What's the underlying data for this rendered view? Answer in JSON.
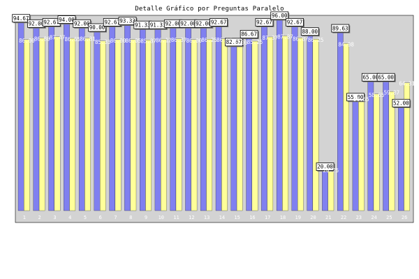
{
  "chart_data": {
    "type": "bar",
    "title": "Detalle Gráfico por Preguntas Paralelo",
    "categories": [
      "1",
      "2",
      "3",
      "4",
      "5",
      "6",
      "7",
      "8",
      "9",
      "10",
      "11",
      "12",
      "13",
      "14",
      "15",
      "16",
      "17",
      "18",
      "19",
      "20",
      "21",
      "22",
      "23",
      "24",
      "25",
      "26"
    ],
    "ylim": [
      0,
      100
    ],
    "yticks": [
      10,
      20,
      30,
      40,
      50,
      60,
      70,
      80,
      90
    ],
    "grid": false,
    "legend": "none",
    "series": [
      {
        "color": "#8080f0",
        "values": [
          94.67,
          92.0,
          92.67,
          94.0,
          92.0,
          90.0,
          92.67,
          93.33,
          91.33,
          91.33,
          92.0,
          92.0,
          92.0,
          92.67,
          82.67,
          86.67,
          92.67,
          96.0,
          92.67,
          88.0,
          20.0,
          89.63,
          55.0,
          65.0,
          65.0,
          52.0
        ]
      },
      {
        "color": "#ffff99",
        "values": [
          86.0,
          86.8,
          87.47,
          86.65,
          86.81,
          85.33,
          86.0,
          86.05,
          85.87,
          86.12,
          86.37,
          86.0,
          86.25,
          86.37,
          85.0,
          85.25,
          87.37,
          87.87,
          86.87,
          86.25,
          20.75,
          84.08,
          56.55,
          58.65,
          59.87,
          64.31
        ]
      }
    ],
    "label_texts": {
      "s0": [
        "94.67",
        "92.00",
        "92.67",
        "94.00",
        "92.00",
        "90.00",
        "92.67",
        "93.33",
        "91.33",
        "91.33",
        "92.00",
        "92.00",
        "92.00",
        "92.67",
        "82.67",
        "86.67",
        "92.67",
        "96.00",
        "92.67",
        "88.00",
        "20.00",
        "89.63",
        "55.00",
        "65.00",
        "65.00",
        "52.00"
      ],
      "s1": [
        "86.00",
        "86.80",
        "87.47",
        "86.65",
        "86.81",
        "85.33",
        "86.00",
        "86.05",
        "85.87",
        "86.12",
        "86.37",
        "86.00",
        "86.25",
        "86.37",
        "85.00",
        "85.25",
        "87.37",
        "87.87",
        "86.87",
        "86.25",
        "20.75",
        "84.08",
        "56.55",
        "58.65",
        "59.87",
        "64.31"
      ]
    }
  }
}
